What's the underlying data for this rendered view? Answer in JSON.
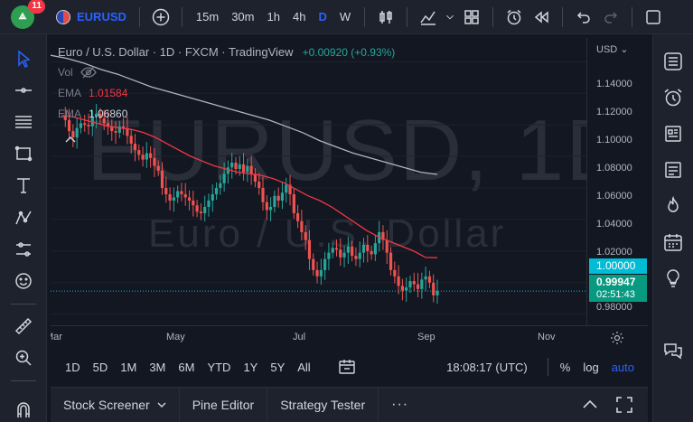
{
  "header": {
    "avatar_initials": "",
    "notification_count": "11",
    "symbol": "EURUSD",
    "intervals": [
      "15m",
      "30m",
      "1h",
      "4h",
      "D",
      "W"
    ],
    "active_interval": "D"
  },
  "legend": {
    "title": "Euro / U.S. Dollar · 1D · FXCM · TradingView",
    "change": "+0.00920 (+0.93%)",
    "vol_label": "Vol",
    "ema1_label": "EMA",
    "ema1_value": "1.01584",
    "ema2_label": "EMA",
    "ema2_value": "1.06860"
  },
  "watermark": {
    "symbol": "EURUSD, 1D",
    "name": "Euro / U.S. Dollar"
  },
  "price_axis": {
    "currency": "USD",
    "ticks": [
      "1.14000",
      "1.12000",
      "1.10000",
      "1.08000",
      "1.06000",
      "1.04000",
      "1.02000",
      "1.00000",
      "0.98000"
    ],
    "last_price": "0.99947",
    "countdown": "02:51:43",
    "crosshair_price": "1.00000"
  },
  "time_axis": {
    "labels": [
      "Mar",
      "May",
      "Jul",
      "Sep",
      "Nov"
    ]
  },
  "range_bar": {
    "ranges": [
      "1D",
      "5D",
      "1M",
      "3M",
      "6M",
      "YTD",
      "1Y",
      "5Y",
      "All"
    ],
    "clock": "18:08:17 (UTC)",
    "percent": "%",
    "log": "log",
    "auto": "auto"
  },
  "bottom_panel": {
    "tabs": [
      "Stock Screener",
      "Pine Editor",
      "Strategy Tester"
    ],
    "more": "···"
  },
  "colors": {
    "up": "#26a69a",
    "down": "#ef5350",
    "ema_fast": "#f23645",
    "ema_slow": "#b2b5be",
    "accent": "#2962ff",
    "price_line": "#00bcd4"
  },
  "chart_data": {
    "type": "candlestick",
    "x_range": [
      "2022-02-20",
      "2022-11-15"
    ],
    "y_range": [
      0.973,
      1.155
    ],
    "closes": [
      1.106,
      1.103,
      1.096,
      1.092,
      1.098,
      1.101,
      1.1,
      1.099,
      1.105,
      1.107,
      1.104,
      1.101,
      1.099,
      1.096,
      1.095,
      1.099,
      1.098,
      1.093,
      1.088,
      1.084,
      1.081,
      1.078,
      1.082,
      1.079,
      1.074,
      1.071,
      1.06,
      1.056,
      1.052,
      1.054,
      1.058,
      1.056,
      1.054,
      1.052,
      1.049,
      1.045,
      1.044,
      1.048,
      1.052,
      1.056,
      1.06,
      1.063,
      1.069,
      1.073,
      1.076,
      1.072,
      1.075,
      1.07,
      1.074,
      1.069,
      1.064,
      1.06,
      1.051,
      1.046,
      1.048,
      1.055,
      1.052,
      1.057,
      1.062,
      1.056,
      1.044,
      1.039,
      1.032,
      1.027,
      1.015,
      1.008,
      1.004,
      1.008,
      1.015,
      1.019,
      1.022,
      1.021,
      1.016,
      1.019,
      1.023,
      1.017,
      1.015,
      1.019,
      1.024,
      1.02,
      1.018,
      1.025,
      1.032,
      1.027,
      1.019,
      1.008,
      1.004,
      0.998,
      0.995,
      0.997,
      1.001,
      0.999,
      0.996,
      1.002,
      1.004,
      1.0,
      0.992,
      0.9947
    ],
    "ema_fast": [
      1.106,
      1.105,
      1.103,
      1.101,
      1.099,
      1.098,
      1.097,
      1.095,
      1.092,
      1.088,
      1.084,
      1.08,
      1.077,
      1.074,
      1.072,
      1.07,
      1.069,
      1.068,
      1.066,
      1.063,
      1.059,
      1.055,
      1.052,
      1.048,
      1.043,
      1.038,
      1.033,
      1.029,
      1.026,
      1.023,
      1.02,
      1.016,
      1.0158
    ],
    "ema_slow": [
      1.144,
      1.142,
      1.139,
      1.135,
      1.132,
      1.128,
      1.124,
      1.121,
      1.118,
      1.115,
      1.112,
      1.109,
      1.106,
      1.103,
      1.099,
      1.095,
      1.09,
      1.086,
      1.082,
      1.079,
      1.076,
      1.073,
      1.07,
      1.0686
    ]
  }
}
